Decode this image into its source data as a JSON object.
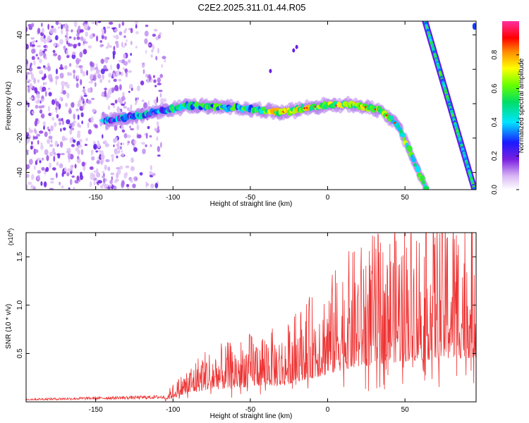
{
  "title": "C2E2.2025.311.01.44.R05",
  "chart_data": [
    {
      "type": "heatmap",
      "xlabel": "Height of straight line (km)",
      "ylabel": "Frequency (Hz)",
      "xlim": [
        -195,
        96
      ],
      "ylim": [
        -50,
        48
      ],
      "xticks": [
        -150,
        -100,
        -50,
        0,
        50
      ],
      "yticks": [
        -40,
        -20,
        0,
        20,
        40
      ],
      "colorbar": {
        "label": "Normalized spectral amplitude",
        "range": [
          0.0,
          1.0
        ],
        "ticks": [
          0.0,
          0.2,
          0.4,
          0.6,
          0.8
        ]
      },
      "noise_region_x": [
        -195,
        -105
      ],
      "ridge": {
        "x": [
          -145,
          -130,
          -110,
          -90,
          -70,
          -50,
          -30,
          -10,
          0,
          20,
          35,
          45,
          52,
          58,
          64
        ],
        "y": [
          -10,
          -8,
          -5,
          -1,
          -2,
          -3,
          -5,
          -2,
          -1,
          -1,
          -4,
          -12,
          -25,
          -38,
          -50
        ]
      },
      "steep_line": {
        "x": [
          63,
          95
        ],
        "y": [
          48,
          -50
        ]
      }
    },
    {
      "type": "line",
      "xlabel": "Height of straight line (km)",
      "ylabel": "SNR (10 * v/v)",
      "y_multiplier": "(x10",
      "y_multiplier_exp": "4",
      "y_multiplier_close": ")",
      "xlim": [
        -195,
        96
      ],
      "ylim": [
        0,
        17500
      ],
      "xticks": [
        -150,
        -100,
        -50,
        0,
        50
      ],
      "yticks": [
        5000,
        10000,
        15000
      ],
      "ytick_labels": [
        "0.5",
        "1.0",
        "1.5"
      ],
      "series_color": "#ee3333",
      "envelope": {
        "x": [
          -195,
          -105,
          -100,
          -80,
          -60,
          -40,
          -30,
          -20,
          -10,
          0,
          10,
          30,
          50,
          70,
          96
        ],
        "y": [
          250,
          500,
          1200,
          3500,
          4000,
          5000,
          4500,
          6000,
          7000,
          8000,
          9500,
          11000,
          12000,
          12500,
          13000
        ]
      }
    }
  ]
}
